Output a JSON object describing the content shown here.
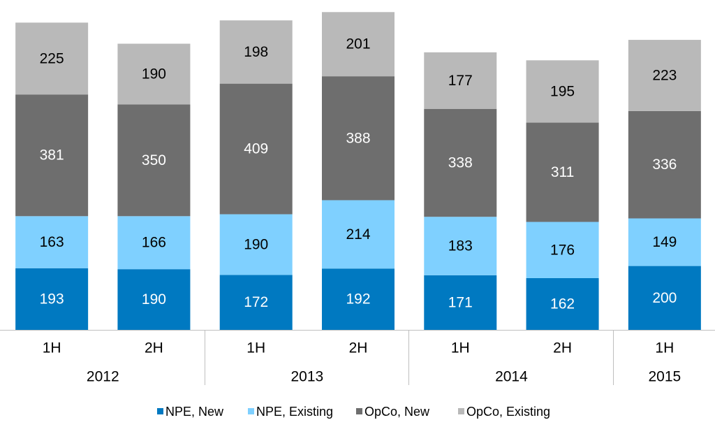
{
  "chart_data": {
    "type": "bar",
    "stacked": true,
    "title": "",
    "xlabel": "",
    "ylabel": "",
    "categories": [
      "1H",
      "2H",
      "1H",
      "2H",
      "1H",
      "2H",
      "1H"
    ],
    "groups": [
      {
        "label": "2012",
        "count": 2
      },
      {
        "label": "2013",
        "count": 2
      },
      {
        "label": "2014",
        "count": 2
      },
      {
        "label": "2015",
        "count": 1
      }
    ],
    "series": [
      {
        "name": "NPE, New",
        "color": "#0079C1",
        "label_color": "#ffffff",
        "values": [
          193,
          190,
          172,
          192,
          171,
          162,
          200
        ]
      },
      {
        "name": "NPE, Existing",
        "color": "#7FD0FF",
        "label_color": "#000000",
        "values": [
          163,
          166,
          190,
          214,
          183,
          176,
          149
        ]
      },
      {
        "name": "OpCo, New",
        "color": "#6E6E6E",
        "label_color": "#ffffff",
        "values": [
          381,
          350,
          409,
          388,
          338,
          311,
          336
        ]
      },
      {
        "name": "OpCo, Existing",
        "color": "#B9B9B9",
        "label_color": "#000000",
        "values": [
          225,
          190,
          198,
          201,
          177,
          195,
          223
        ]
      }
    ],
    "ylim": [
      0,
      1000
    ],
    "grid": false,
    "legend": "bottom"
  }
}
